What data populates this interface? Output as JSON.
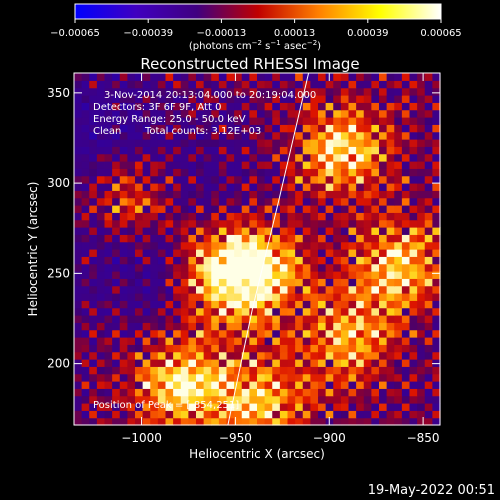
{
  "chart_data": {
    "type": "heatmap",
    "title": "Reconstructed RHESSI Image",
    "xlabel": "Heliocentric X (arcsec)",
    "ylabel": "Heliocentric Y (arcsec)",
    "xlim": [
      -1036,
      -841
    ],
    "ylim": [
      166,
      361
    ],
    "x_ticks": [
      -1000,
      -950,
      -900,
      -850
    ],
    "x_tick_labels": [
      "−1000",
      "−950",
      "−900",
      "−850"
    ],
    "y_ticks": [
      200,
      250,
      300,
      350
    ],
    "y_tick_labels": [
      "200",
      "250",
      "300",
      "350"
    ],
    "colorbar": {
      "range": [
        -0.00065,
        0.00065
      ],
      "ticks": [
        -0.00065,
        -0.00039,
        -0.00013,
        0.00013,
        0.00039,
        0.00065
      ],
      "tick_labels": [
        "−0.00065",
        "−0.00039",
        "−0.00013",
        "0.00013",
        "0.00039",
        "0.00065"
      ],
      "unit_base": "(photons cm",
      "unit_exp1": "−2",
      "unit_mid": " s",
      "unit_exp2": "−1",
      "unit_mid2": " asec",
      "unit_exp3": "−2",
      "unit_end": ")",
      "colors": [
        "#0000ff",
        "#4000c0",
        "#400080",
        "#c00000",
        "#ff8000",
        "#ffff00",
        "#ffffff"
      ]
    },
    "annotations": {
      "time_range": "3-Nov-2014 20:13:04.000 to 20:19:04.000",
      "detectors": "Detectors: 3F 6F 9F, Att 0",
      "energy": "Energy Range: 25.0 - 50.0 keV",
      "method": "Clean",
      "counts": "Total counts: 3.12E+03",
      "peak": "Position of Peak = [-854,251]"
    },
    "limb": [
      {
        "x": -954,
        "y": 166
      },
      {
        "x": -941,
        "y": 230
      },
      {
        "x": -927,
        "y": 290
      },
      {
        "x": -911,
        "y": 361
      }
    ],
    "bright_regions": [
      {
        "x": -955,
        "y": 250,
        "level": 0.8
      },
      {
        "x": -978,
        "y": 188,
        "level": 0.88
      },
      {
        "x": -893,
        "y": 318,
        "level": 0.82
      },
      {
        "x": -937,
        "y": 252,
        "level": 0.7
      },
      {
        "x": -1003,
        "y": 292,
        "level": 0.55
      },
      {
        "x": -890,
        "y": 215,
        "level": 0.65
      },
      {
        "x": -862,
        "y": 255,
        "level": 0.78
      },
      {
        "x": -935,
        "y": 180,
        "level": 0.7
      }
    ],
    "dark_regions": [
      {
        "x": -1021,
        "y": 330,
        "level": -0.35
      },
      {
        "x": -1005,
        "y": 255,
        "level": -0.3
      },
      {
        "x": -975,
        "y": 300,
        "level": -0.25
      }
    ]
  },
  "footer": {
    "date": "19-May-2022 00:51"
  }
}
